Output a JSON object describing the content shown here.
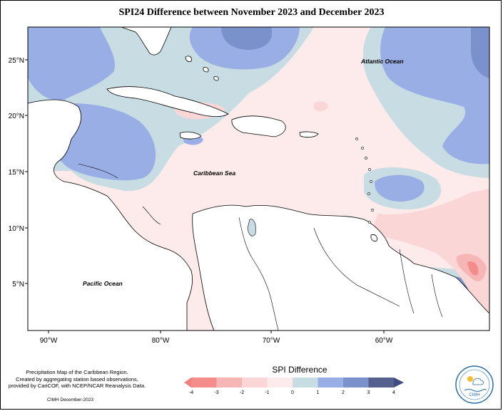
{
  "title": "SPI24 Difference between November 2023 and December 2023",
  "map_labels": {
    "atlantic": "Atlantic Ocean",
    "caribbean": "Caribbean Sea",
    "pacific": "Pacific Ocean"
  },
  "lat_ticks": [
    "25°N",
    "20°N",
    "15°N",
    "10°N",
    "5°N"
  ],
  "lon_ticks": [
    "90°W",
    "80°W",
    "70°W",
    "60°W"
  ],
  "legend": {
    "title": "SPI Difference",
    "ticks": [
      "-4",
      "-3",
      "-2",
      "-1",
      "0",
      "1",
      "2",
      "3",
      "4"
    ],
    "colors": [
      "#f48c8c",
      "#f7b6b6",
      "#fad6d6",
      "#fdeaea",
      "#c8dde3",
      "#9aaee6",
      "#7a91cc",
      "#55608f"
    ],
    "low_color": "#f07f7f",
    "high_color": "#3f4a80"
  },
  "credit": {
    "line1": "Precipitation Map of the Caribbean Region.",
    "line2": "Created by aggregating station based observations,",
    "line3": "provided by CariCOF, with NCEP/NCAR Reanalysis Data.",
    "footer": "CIMH December-2023"
  },
  "logo": {
    "text": "CIMH"
  }
}
